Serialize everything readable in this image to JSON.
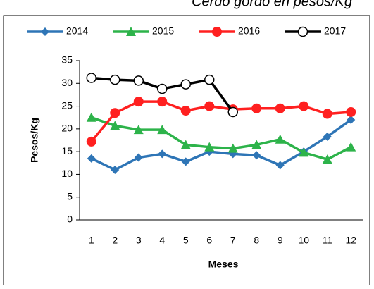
{
  "chart_data": {
    "type": "line",
    "title": "Cerdo gordo en pesos/Kg",
    "x_label": "Meses",
    "y_label": "Pesos/Kg",
    "categories": [
      "1",
      "2",
      "3",
      "4",
      "5",
      "6",
      "7",
      "8",
      "9",
      "10",
      "11",
      "12"
    ],
    "ylim": [
      0,
      35
    ],
    "yticks": [
      0,
      5,
      10,
      15,
      20,
      25,
      30,
      35
    ],
    "grid": false,
    "legend": "top",
    "series": [
      {
        "name": "2014",
        "color": "#2e75b6",
        "marker": "diamond",
        "values": [
          13.5,
          11,
          13.7,
          14.5,
          12.8,
          15,
          14.5,
          14.2,
          12,
          15,
          18.3,
          22
        ]
      },
      {
        "name": "2015",
        "color": "#2db34a",
        "marker": "triangle",
        "values": [
          22.5,
          20.7,
          19.8,
          19.8,
          16.5,
          16,
          15.7,
          16.5,
          17.7,
          14.8,
          13.3,
          16
        ]
      },
      {
        "name": "2016",
        "color": "#ff2020",
        "marker": "circle",
        "values": [
          17.2,
          23.5,
          26,
          26,
          24,
          25,
          24.3,
          24.5,
          24.5,
          25,
          23.3,
          23.7
        ]
      },
      {
        "name": "2017",
        "color": "#000000",
        "marker": "open-circle",
        "values": [
          31.2,
          30.8,
          30.6,
          28.8,
          29.8,
          30.8,
          23.7,
          null,
          null,
          null,
          null,
          null
        ]
      }
    ]
  }
}
